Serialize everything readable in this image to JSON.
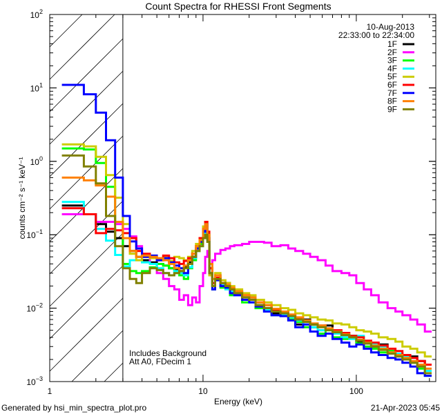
{
  "chart_data": {
    "type": "line",
    "step": true,
    "title": "Count Spectra for RHESSI Front Segments",
    "xlabel": "Energy (keV)",
    "ylabel": "counts cm⁻² s⁻¹ keV⁻¹",
    "xscale": "log",
    "yscale": "log",
    "xlim": [
      1,
      330
    ],
    "ylim": [
      0.001,
      100
    ],
    "xtick_labels": [
      {
        "value": 1,
        "label": "1"
      },
      {
        "value": 10,
        "label": "10"
      },
      {
        "value": 100,
        "label": "100"
      }
    ],
    "ytick_labels": [
      {
        "value": 100,
        "base": "10",
        "exp": "2"
      },
      {
        "value": 10,
        "base": "10",
        "exp": "1"
      },
      {
        "value": 1,
        "base": "10",
        "exp": "0"
      },
      {
        "value": 0.1,
        "base": "10",
        "exp": "−1"
      },
      {
        "value": 0.01,
        "base": "10",
        "exp": "−2"
      },
      {
        "value": 0.001,
        "base": "10",
        "exp": "−3"
      }
    ],
    "hatched_region_keV": [
      1,
      3
    ],
    "date": "10-Aug-2013",
    "time_range": "22:33:00 to 22:34:00",
    "annotations": [
      "Includes Background",
      "Att A0, FDecim 1"
    ],
    "legend_position": "top-right",
    "energy_edges": [
      1.2,
      1.67,
      2,
      2.33,
      2.67,
      3,
      3.33,
      3.67,
      4,
      4.5,
      5,
      5.5,
      6,
      6.5,
      7,
      7.5,
      8,
      8.5,
      9,
      9.5,
      10,
      10.33,
      10.67,
      11,
      11.5,
      12,
      13,
      14,
      15,
      16,
      18,
      20,
      22,
      25,
      28,
      32,
      36,
      40,
      45,
      50,
      56,
      63,
      70,
      80,
      90,
      100,
      112,
      125,
      140,
      160,
      180,
      200,
      225,
      250,
      280,
      310
    ],
    "series": [
      {
        "name": "1F",
        "color": "#000000",
        "values": [
          0.25,
          0.19,
          0.14,
          0.11,
          0.09,
          0.07,
          0.06,
          0.05,
          0.045,
          0.042,
          0.04,
          0.038,
          0.035,
          0.033,
          0.032,
          0.036,
          0.042,
          0.05,
          0.065,
          0.08,
          0.11,
          0.14,
          0.09,
          0.035,
          0.02,
          0.028,
          0.02,
          0.022,
          0.016,
          0.017,
          0.013,
          0.014,
          0.011,
          0.01,
          0.0085,
          0.009,
          0.0075,
          0.006,
          0.007,
          0.0055,
          0.005,
          0.0058,
          0.0045,
          0.004,
          0.0042,
          0.0035,
          0.0033,
          0.003,
          0.0032,
          0.0026,
          0.0024,
          0.0021,
          0.0022,
          0.0019,
          0.0017
        ]
      },
      {
        "name": "2F",
        "color": "#ff00ff",
        "values": [
          0.19,
          0.19,
          0.15,
          0.15,
          0.14,
          0.12,
          0.095,
          0.07,
          0.05,
          0.04,
          0.03,
          0.025,
          0.02,
          0.018,
          0.013,
          0.015,
          0.011,
          0.014,
          0.012,
          0.02,
          0.03,
          0.05,
          0.06,
          0.04,
          0.045,
          0.055,
          0.062,
          0.065,
          0.07,
          0.072,
          0.075,
          0.08,
          0.08,
          0.078,
          0.07,
          0.072,
          0.065,
          0.06,
          0.055,
          0.05,
          0.045,
          0.038,
          0.032,
          0.03,
          0.028,
          0.022,
          0.018,
          0.015,
          0.012,
          0.01,
          0.009,
          0.008,
          0.007,
          0.006,
          0.0048
        ]
      },
      {
        "name": "3F",
        "color": "#00ff00",
        "values": [
          1.5,
          1.45,
          0.95,
          0.45,
          0.15,
          0.04,
          0.032,
          0.03,
          0.032,
          0.036,
          0.04,
          0.038,
          0.035,
          0.03,
          0.028,
          0.025,
          0.035,
          0.045,
          0.06,
          0.075,
          0.1,
          0.13,
          0.1,
          0.03,
          0.018,
          0.025,
          0.019,
          0.02,
          0.015,
          0.016,
          0.012,
          0.013,
          0.01,
          0.011,
          0.008,
          0.0085,
          0.007,
          0.0065,
          0.0055,
          0.006,
          0.0045,
          0.005,
          0.004,
          0.0038,
          0.0042,
          0.0033,
          0.003,
          0.0028,
          0.0025,
          0.0026,
          0.0022,
          0.002,
          0.0018,
          0.0015,
          0.0012
        ]
      },
      {
        "name": "4F",
        "color": "#00ffff",
        "values": [
          0.28,
          0.19,
          0.12,
          0.083,
          0.053,
          0.037,
          0.045,
          0.045,
          0.042,
          0.04,
          0.035,
          0.03,
          0.028,
          0.032,
          0.03,
          0.028,
          0.036,
          0.048,
          0.06,
          0.07,
          0.1,
          0.12,
          0.085,
          0.03,
          0.02,
          0.024,
          0.021,
          0.018,
          0.017,
          0.015,
          0.014,
          0.012,
          0.011,
          0.0095,
          0.009,
          0.008,
          0.0075,
          0.0068,
          0.006,
          0.0055,
          0.005,
          0.0052,
          0.0045,
          0.004,
          0.0038,
          0.0042,
          0.0035,
          0.0032,
          0.003,
          0.0025,
          0.0024,
          0.0022,
          0.0019,
          0.0017,
          0.0014
        ]
      },
      {
        "name": "5F",
        "color": "#cccc00",
        "values": [
          1.7,
          1.6,
          1.15,
          0.65,
          0.32,
          0.14,
          0.055,
          0.045,
          0.05,
          0.048,
          0.045,
          0.05,
          0.044,
          0.05,
          0.048,
          0.045,
          0.05,
          0.06,
          0.075,
          0.09,
          0.13,
          0.15,
          0.1,
          0.028,
          0.025,
          0.03,
          0.024,
          0.022,
          0.02,
          0.018,
          0.016,
          0.015,
          0.013,
          0.012,
          0.011,
          0.01,
          0.0095,
          0.0085,
          0.008,
          0.0075,
          0.007,
          0.0068,
          0.0062,
          0.006,
          0.0055,
          0.005,
          0.0048,
          0.0045,
          0.004,
          0.0038,
          0.0035,
          0.003,
          0.0028,
          0.0025,
          0.0022
        ]
      },
      {
        "name": "6F",
        "color": "#ff0000",
        "values": [
          0.23,
          0.19,
          0.105,
          0.12,
          0.115,
          0.105,
          0.09,
          0.06,
          0.055,
          0.05,
          0.045,
          0.052,
          0.048,
          0.042,
          0.04,
          0.044,
          0.048,
          0.055,
          0.07,
          0.09,
          0.12,
          0.15,
          0.11,
          0.035,
          0.022,
          0.026,
          0.022,
          0.02,
          0.018,
          0.016,
          0.015,
          0.013,
          0.012,
          0.011,
          0.0095,
          0.009,
          0.008,
          0.0072,
          0.0068,
          0.006,
          0.0058,
          0.0052,
          0.005,
          0.0046,
          0.0042,
          0.004,
          0.0036,
          0.0034,
          0.0031,
          0.0028,
          0.0026,
          0.0023,
          0.0021,
          0.0019,
          0.0017
        ]
      },
      {
        "name": "7F",
        "color": "#0000ff",
        "values": [
          11,
          8.2,
          4.6,
          1.94,
          0.6,
          0.18,
          0.081,
          0.065,
          0.05,
          0.052,
          0.045,
          0.048,
          0.042,
          0.038,
          0.035,
          0.03,
          0.04,
          0.05,
          0.065,
          0.08,
          0.11,
          0.14,
          0.09,
          0.03,
          0.018,
          0.024,
          0.02,
          0.019,
          0.016,
          0.015,
          0.013,
          0.012,
          0.0105,
          0.009,
          0.008,
          0.0078,
          0.0068,
          0.0055,
          0.006,
          0.0048,
          0.0042,
          0.0045,
          0.0038,
          0.0034,
          0.003,
          0.0032,
          0.0028,
          0.0025,
          0.0023,
          0.0021,
          0.002,
          0.0018,
          0.0016,
          0.0013,
          0.0012
        ]
      },
      {
        "name": "8F",
        "color": "#ff8000",
        "values": [
          0.6,
          0.55,
          0.47,
          0.33,
          0.15,
          0.09,
          0.06,
          0.05,
          0.052,
          0.05,
          0.048,
          0.045,
          0.04,
          0.035,
          0.032,
          0.038,
          0.045,
          0.055,
          0.07,
          0.085,
          0.12,
          0.14,
          0.1,
          0.04,
          0.025,
          0.028,
          0.022,
          0.021,
          0.019,
          0.017,
          0.015,
          0.014,
          0.012,
          0.011,
          0.0098,
          0.009,
          0.0082,
          0.0075,
          0.0068,
          0.0062,
          0.0058,
          0.0053,
          0.0048,
          0.0044,
          0.004,
          0.0037,
          0.0034,
          0.0031,
          0.0028,
          0.0025,
          0.0023,
          0.0021,
          0.0019,
          0.0017,
          0.0015
        ]
      },
      {
        "name": "9F",
        "color": "#808000",
        "values": [
          1.2,
          0.85,
          0.5,
          0.18,
          0.07,
          0.035,
          0.025,
          0.022,
          0.03,
          0.035,
          0.033,
          0.03,
          0.028,
          0.03,
          0.032,
          0.035,
          0.04,
          0.05,
          0.06,
          0.07,
          0.09,
          0.1,
          0.08,
          0.03,
          0.02,
          0.025,
          0.022,
          0.02,
          0.018,
          0.016,
          0.014,
          0.013,
          0.011,
          0.01,
          0.009,
          0.0085,
          0.0078,
          0.007,
          0.0065,
          0.006,
          0.0055,
          0.005,
          0.0047,
          0.0043,
          0.004,
          0.0036,
          0.0033,
          0.003,
          0.0027,
          0.0024,
          0.0022,
          0.002,
          0.0018,
          0.0016,
          0.0013
        ]
      }
    ]
  },
  "footer": {
    "generated_by": "Generated by hsi_min_spectra_plot.pro",
    "timestamp": "21-Apr-2023 05:45"
  }
}
